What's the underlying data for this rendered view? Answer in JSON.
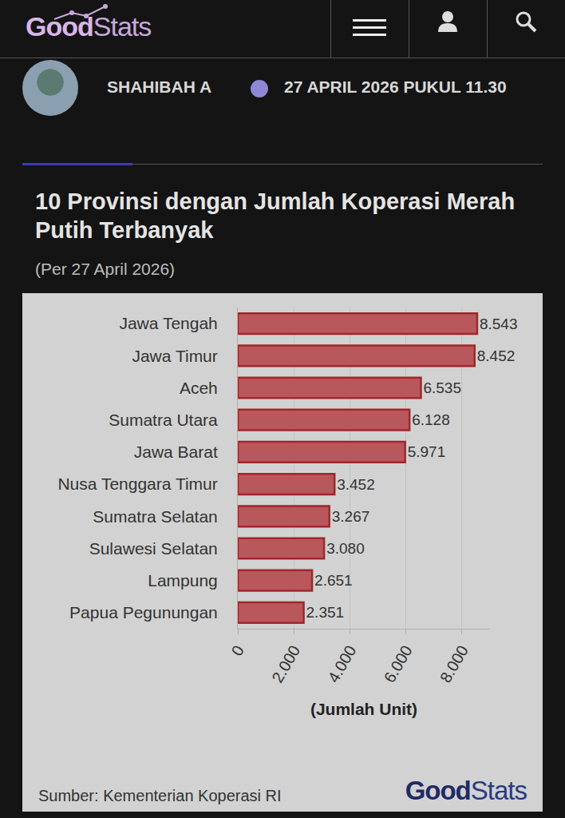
{
  "header": {
    "logo": [
      "Good",
      "Stats"
    ],
    "author": "SHAHIBAH A",
    "date": "27 APRIL 2026 PUKUL 11.30"
  },
  "chart_data": {
    "type": "bar",
    "title": "10 Provinsi dengan Jumlah Koperasi Merah Putih Terbanyak",
    "subtitle": "(Per 27 April 2026)",
    "orientation": "horizontal",
    "categories": [
      "Jawa Tengah",
      "Jawa Timur",
      "Aceh",
      "Sumatra Utara",
      "Jawa Barat",
      "Nusa Tenggara Timur",
      "Sumatra Selatan",
      "Sulawesi Selatan",
      "Lampung",
      "Papua Pegunungan"
    ],
    "values": [
      8543,
      8452,
      6535,
      6128,
      5971,
      3452,
      3267,
      3080,
      2651,
      2351
    ],
    "value_labels": [
      "8.543",
      "8.452",
      "6.535",
      "6.128",
      "5.971",
      "3.452",
      "3.267",
      "3.080",
      "2.651",
      "2.351"
    ],
    "color": "#b8585c",
    "data_labels": true,
    "xlim": [
      0,
      9000
    ],
    "xticks": [
      0,
      {
        "value": 2000,
        "label": "2.000"
      },
      {
        "value": 4000,
        "label": "4.000"
      },
      {
        "value": 6000,
        "label": "6.000"
      },
      {
        "value": 8000,
        "label": "8.000"
      }
    ],
    "x_label": "(Jumlah Unit)",
    "grid": true,
    "source": "Sumber: Kementerian Koperasi RI",
    "watermark": [
      "Good",
      "Stats"
    ]
  }
}
